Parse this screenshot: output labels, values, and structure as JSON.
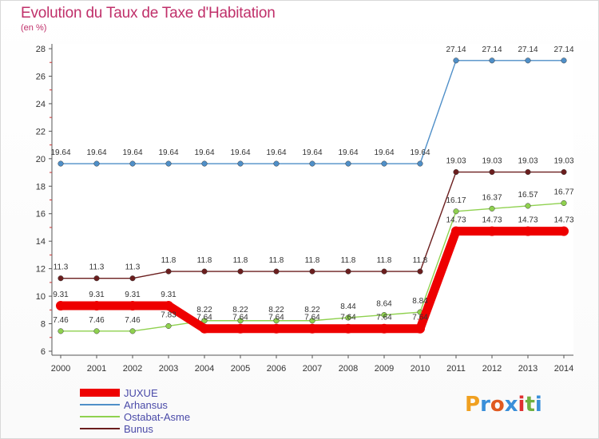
{
  "title": "Evolution du Taux de Taxe d'Habitation",
  "unit": "(en %)",
  "brand": {
    "text": "Proxiti",
    "colors": [
      "#f0a020",
      "#3a8fd9",
      "#e05a20",
      "#3a8fd9",
      "#e03030",
      "#70b040",
      "#3a8fd9"
    ]
  },
  "chart_data": {
    "type": "line",
    "x": [
      2000,
      2001,
      2002,
      2003,
      2004,
      2005,
      2006,
      2007,
      2008,
      2009,
      2010,
      2011,
      2012,
      2013,
      2014
    ],
    "ylim": [
      6,
      28
    ],
    "yticks": [
      6,
      8,
      10,
      12,
      14,
      16,
      18,
      20,
      22,
      24,
      26,
      28
    ],
    "grid": false,
    "legend_position": "bottom-left",
    "series": [
      {
        "name": "JUXUE",
        "color": "#ee0000",
        "values": [
          9.31,
          9.31,
          9.31,
          9.31,
          7.64,
          7.64,
          7.64,
          7.64,
          7.64,
          7.64,
          7.64,
          14.73,
          14.73,
          14.73,
          14.73
        ],
        "labels": [
          "9.31",
          "9.31",
          "9.31",
          "9.31",
          "7.64",
          "7.64",
          "7.64",
          "7.64",
          "7.64",
          "7.64",
          "7.64",
          "14.73",
          "14.73",
          "14.73",
          "14.73"
        ]
      },
      {
        "name": "Arhansus",
        "color": "#4f8fc8",
        "values": [
          19.64,
          19.64,
          19.64,
          19.64,
          19.64,
          19.64,
          19.64,
          19.64,
          19.64,
          19.64,
          19.64,
          27.14,
          27.14,
          27.14,
          27.14
        ],
        "labels": [
          "19.64",
          "19.64",
          "19.64",
          "19.64",
          "19.64",
          "19.64",
          "19.64",
          "19.64",
          "19.64",
          "19.64",
          "19.64",
          "27.14",
          "27.14",
          "27.14",
          "27.14"
        ]
      },
      {
        "name": "Ostabat-Asme",
        "color": "#8fd14f",
        "values": [
          7.46,
          7.46,
          7.46,
          7.83,
          8.22,
          8.22,
          8.22,
          8.22,
          8.44,
          8.64,
          8.84,
          16.17,
          16.37,
          16.57,
          16.77
        ],
        "labels": [
          "7.46",
          "7.46",
          "7.46",
          "7.83",
          "8.22",
          "8.22",
          "8.22",
          "8.22",
          "8.44",
          "8.64",
          "8.84",
          "16.17",
          "16.37",
          "16.57",
          "16.77"
        ]
      },
      {
        "name": "Bunus",
        "color": "#6b1e1e",
        "values": [
          11.3,
          11.3,
          11.3,
          11.8,
          11.8,
          11.8,
          11.8,
          11.8,
          11.8,
          11.8,
          11.8,
          19.03,
          19.03,
          19.03,
          19.03
        ],
        "labels": [
          "11.3",
          "11.3",
          "11.3",
          "11.8",
          "11.8",
          "11.8",
          "11.8",
          "11.8",
          "11.8",
          "11.8",
          "11.8",
          "19.03",
          "19.03",
          "19.03",
          "19.03"
        ]
      }
    ]
  }
}
